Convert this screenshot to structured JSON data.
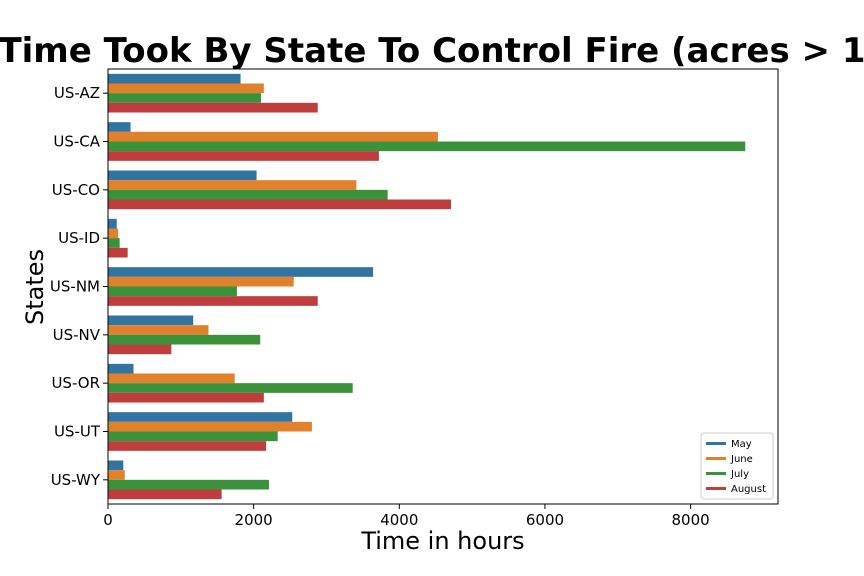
{
  "chart_data": {
    "type": "bar",
    "orientation": "horizontal",
    "title": "Time Took By State To Control Fire (acres > 1",
    "xlabel": "Time in hours",
    "ylabel": "States",
    "categories": [
      "US-AZ",
      "US-CA",
      "US-CO",
      "US-ID",
      "US-NM",
      "US-NV",
      "US-OR",
      "US-UT",
      "US-WY"
    ],
    "xlim": [
      0,
      9200
    ],
    "xticks": [
      0,
      2000,
      4000,
      6000,
      8000
    ],
    "xtick_labels": [
      "0",
      "2000",
      "4000",
      "6000",
      "8000"
    ],
    "legend_position": "lower-right",
    "grid": false,
    "series": [
      {
        "name": "May",
        "color": "#3274a1",
        "values": [
          1820,
          310,
          2040,
          120,
          3640,
          1170,
          350,
          2530,
          210
        ]
      },
      {
        "name": "June",
        "color": "#e1812c",
        "values": [
          2140,
          4530,
          3410,
          140,
          2550,
          1380,
          1740,
          2800,
          230
        ]
      },
      {
        "name": "July",
        "color": "#3a923a",
        "values": [
          2100,
          8750,
          3840,
          160,
          1770,
          2090,
          3360,
          2330,
          2210
        ]
      },
      {
        "name": "August",
        "color": "#c03d3e",
        "values": [
          2880,
          3720,
          4710,
          270,
          2880,
          870,
          2140,
          2170,
          1560
        ]
      }
    ]
  }
}
